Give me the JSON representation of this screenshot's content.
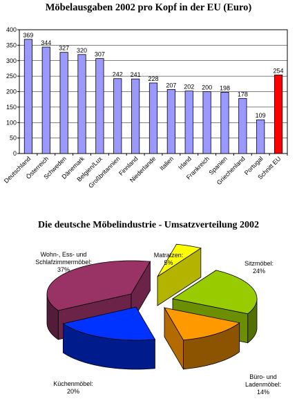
{
  "chart_data": [
    {
      "type": "bar",
      "title": "Möbelausgaben 2002 pro Kopf in der EU (Euro)",
      "categories": [
        "Deutschland",
        "Österreich",
        "Schweden",
        "Dänemark",
        "Belgien/Lux",
        "Großbritannien",
        "Finnland",
        "Niederlande",
        "Italien",
        "Irland",
        "Frankreich",
        "Spanien",
        "Griechenland",
        "Portugal",
        "Schnitt EU"
      ],
      "values": [
        369,
        344,
        327,
        320,
        307,
        242,
        241,
        228,
        207,
        202,
        200,
        198,
        178,
        109,
        254
      ],
      "yticks": [
        "0",
        "50",
        "100",
        "150",
        "200",
        "250",
        "300",
        "350",
        "400"
      ],
      "ylim": [
        0,
        400
      ],
      "grid": true,
      "colors": {
        "bar": "#9999ff",
        "highlight": "#ff0000",
        "highlight_category": "Schnitt EU"
      }
    },
    {
      "type": "pie",
      "title": "Die deutsche Möbelindustrie - Umsatzverteilung 2002",
      "slices": [
        {
          "label": [
            "Wohn-, Ess- und",
            "Schlafzimmermöbel:"
          ],
          "percent_label": "37%",
          "value": 37,
          "color": "#993366"
        },
        {
          "label": [
            "Matratzen:"
          ],
          "percent_label": "5%",
          "value": 5,
          "color": "#ffff00"
        },
        {
          "label": [
            "Sitzmöbel:"
          ],
          "percent_label": "24%",
          "value": 24,
          "color": "#99cc00"
        },
        {
          "label": [
            "Büro- und",
            "Ladenmöbel:"
          ],
          "percent_label": "14%",
          "value": 14,
          "color": "#ff9900"
        },
        {
          "label": [
            "Küchenmöbel:"
          ],
          "percent_label": "20%",
          "value": 20,
          "color": "#0033ff"
        }
      ]
    }
  ]
}
